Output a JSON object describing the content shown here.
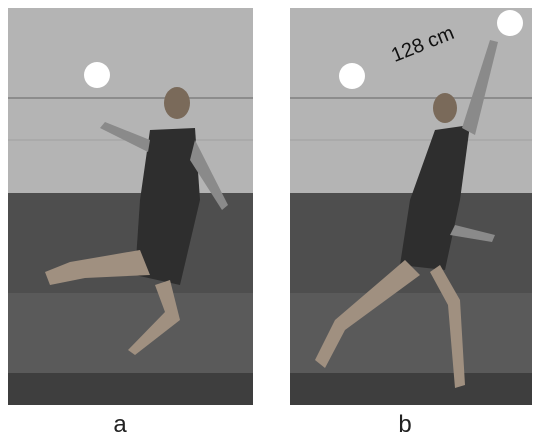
{
  "panels": [
    {
      "label": "a"
    },
    {
      "label": "b",
      "annotation": "128 cm"
    }
  ]
}
